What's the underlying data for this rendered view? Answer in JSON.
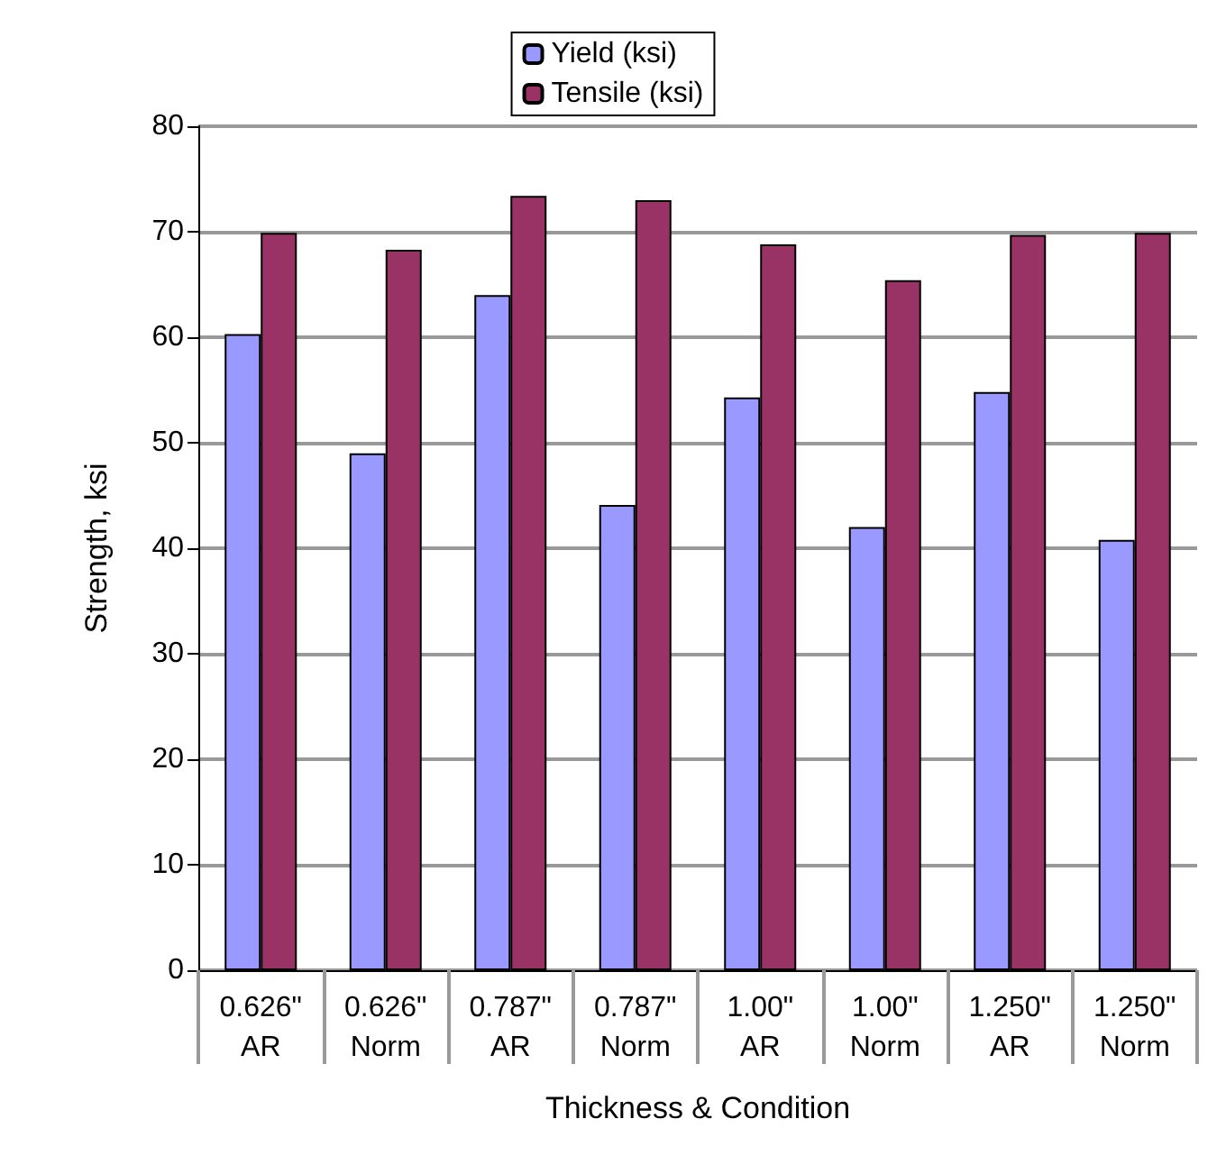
{
  "chart_data": {
    "type": "bar",
    "xlabel": "Thickness & Condition",
    "ylabel": "Strength, ksi",
    "categories": [
      "0.626\" AR",
      "0.626\" Norm",
      "0.787\" AR",
      "0.787\" Norm",
      "1.00\" AR",
      "1.00\" Norm",
      "1.250\" AR",
      "1.250\" Norm"
    ],
    "series": [
      {
        "name": "Yield (ksi)",
        "color": "#9999ff",
        "values": [
          60.3,
          49.0,
          64.0,
          44.1,
          54.3,
          42.0,
          54.8,
          40.8
        ]
      },
      {
        "name": "Tensile (ksi)",
        "color": "#993366",
        "values": [
          69.9,
          68.3,
          73.4,
          73.0,
          68.8,
          65.4,
          69.7,
          69.9
        ]
      }
    ],
    "ylim": [
      0,
      80
    ],
    "yticks": [
      0,
      10,
      20,
      30,
      40,
      50,
      60,
      70,
      80
    ],
    "grid": "y",
    "legend": "top"
  }
}
